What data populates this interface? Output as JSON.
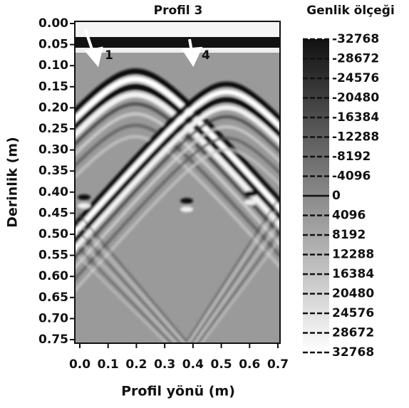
{
  "chart_data": {
    "type": "radargram",
    "title": "Profil 3",
    "xlabel": "Profil yönü (m)",
    "ylabel": "Derinlik (m)",
    "xlim": [
      0,
      0.7
    ],
    "xticks": [
      {
        "value": 0,
        "label": "0.0"
      },
      0.1,
      0.2,
      0.3,
      0.4,
      0.5,
      0.6,
      0.7
    ],
    "ylim": [
      0,
      0.75
    ],
    "yticks": [
      {
        "value": 0,
        "label": "0.00"
      },
      0.05,
      {
        "value": 0.1,
        "label": "0.10"
      },
      0.15,
      {
        "value": 0.2,
        "label": "0.20"
      },
      0.25,
      {
        "value": 0.3,
        "label": "0.30"
      },
      0.35,
      {
        "value": 0.4,
        "label": "0.40"
      },
      0.45,
      {
        "value": 0.5,
        "label": "0.50"
      },
      0.55,
      {
        "value": 0.6,
        "label": "0.60"
      },
      0.65,
      {
        "value": 0.7,
        "label": "0.70"
      },
      0.75
    ],
    "annotations": [
      "1",
      "4"
    ],
    "colorbar": {
      "title": "Genlik ölçeği",
      "lim": [
        -32768,
        32768
      ],
      "ticks": [
        -32768,
        -28672,
        -24576,
        -20480,
        -16384,
        -12288,
        -8192,
        -4096,
        0,
        4096,
        8192,
        12288,
        16384,
        20480,
        24576,
        28672,
        32768
      ]
    }
  }
}
